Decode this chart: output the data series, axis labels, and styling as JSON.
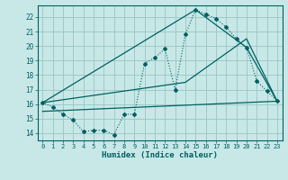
{
  "background_color": "#c8e8e8",
  "grid_color": "#a0c8c8",
  "line_color": "#006060",
  "xlabel": "Humidex (Indice chaleur)",
  "xlim": [
    -0.5,
    23.5
  ],
  "ylim": [
    13.5,
    22.8
  ],
  "yticks": [
    14,
    15,
    16,
    17,
    18,
    19,
    20,
    21,
    22
  ],
  "xticks": [
    0,
    1,
    2,
    3,
    4,
    5,
    6,
    7,
    8,
    9,
    10,
    11,
    12,
    13,
    14,
    15,
    16,
    17,
    18,
    19,
    20,
    21,
    22,
    23
  ],
  "line1_x": [
    0,
    1,
    2,
    3,
    4,
    5,
    6,
    7,
    8,
    9,
    10,
    11,
    12,
    13,
    14,
    15,
    16,
    17,
    18,
    19,
    20,
    21,
    22,
    23
  ],
  "line1_y": [
    16.1,
    15.8,
    15.3,
    14.9,
    14.1,
    14.2,
    14.2,
    13.9,
    15.3,
    15.3,
    18.8,
    19.2,
    19.8,
    17.0,
    20.8,
    22.5,
    22.2,
    21.9,
    21.3,
    20.5,
    19.9,
    17.6,
    16.9,
    16.2
  ],
  "line2_x": [
    0,
    14,
    20,
    23
  ],
  "line2_y": [
    16.1,
    17.5,
    20.5,
    16.2
  ],
  "line3_x": [
    0,
    15,
    20,
    23
  ],
  "line3_y": [
    16.1,
    22.5,
    19.9,
    16.2
  ],
  "line4_x": [
    0,
    23
  ],
  "line4_y": [
    15.5,
    16.2
  ]
}
